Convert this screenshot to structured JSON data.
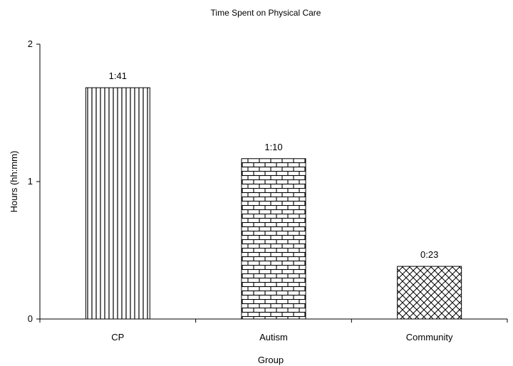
{
  "chart_data": {
    "type": "bar",
    "title": "Time Spent on Physical Care",
    "xlabel": "Group",
    "ylabel": "Hours (hh:mm)",
    "ylim": [
      0,
      2
    ],
    "yticks": [
      "0",
      "1",
      "2"
    ],
    "categories": [
      "CP",
      "Autism",
      "Community"
    ],
    "values": [
      1.683,
      1.167,
      0.383
    ],
    "data_labels": [
      "1:41",
      "1:10",
      "0:23"
    ],
    "patterns": [
      "vertical-lines",
      "brick",
      "diagonal-crosshatch"
    ],
    "grid": false,
    "legend": "none",
    "bar_fill": "#ffffff",
    "bar_stroke": "#000000"
  }
}
